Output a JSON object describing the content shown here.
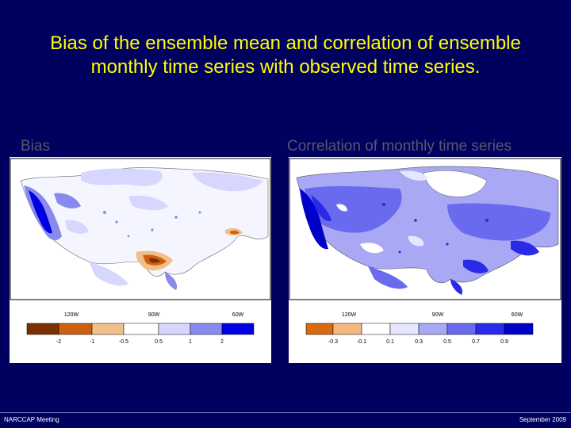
{
  "title": "Bias of the ensemble mean and correlation of ensemble monthly time series with observed time series.",
  "panels": {
    "bias": {
      "label": "Bias",
      "lon_labels": [
        "120W",
        "90W",
        "60W"
      ],
      "colorbar": {
        "labels": [
          "-2",
          "-1",
          "-0.5",
          "0.5",
          "1",
          "2"
        ],
        "colors": [
          "#7a3000",
          "#cc6010",
          "#f0c088",
          "#ffffff",
          "#d6d6ff",
          "#8a8aee",
          "#0000e0"
        ]
      }
    },
    "correlation": {
      "label": "Correlation of monthly time series",
      "lon_labels": [
        "120W",
        "90W",
        "60W"
      ],
      "colorbar": {
        "labels": [
          "-0.3",
          "-0.1",
          "0.1",
          "0.3",
          "0.5",
          "0.7",
          "0.9"
        ],
        "colors": [
          "#d86a10",
          "#f4b880",
          "#ffffff",
          "#e6e6ff",
          "#a8a8f4",
          "#6a6aee",
          "#2a2ae8",
          "#0000c8"
        ]
      }
    }
  },
  "footer": {
    "left": "NARCCAP Meeting",
    "right": "September 2009"
  },
  "colors": {
    "background": "#00005e",
    "title": "#ffff00"
  }
}
